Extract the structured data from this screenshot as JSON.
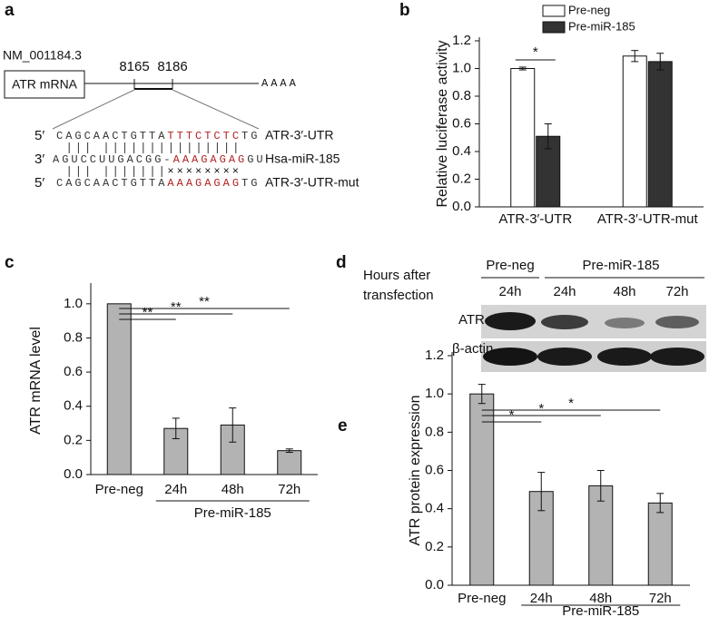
{
  "panel_a": {
    "letter": "a",
    "accession": "NM_001184.3",
    "gene_box": "ATR mRNA",
    "positions": [
      "8165",
      "8186"
    ],
    "poly_a": "AAAA",
    "rows": [
      {
        "end": "5′",
        "seq": [
          "CAGCAACTGTTA",
          "TTTCTCTC",
          "TG"
        ],
        "name": "ATR-3′-UTR"
      },
      {
        "end": "3′",
        "seq": [
          "AGUCCUUGACGG-",
          "AAAGAGAG",
          "GU"
        ],
        "name": "Hsa-miR-185"
      },
      {
        "end": "5′",
        "seq": [
          "CAGCAACTGTTA",
          "AAAGAGAG",
          "TG"
        ],
        "name": "ATR-3′-UTR-mut"
      }
    ],
    "mismatch": "××××××××"
  },
  "panel_d": {
    "letter": "d",
    "row_label": [
      "Hours after",
      "transfection"
    ],
    "groups": [
      "Pre-neg",
      "Pre-miR-185"
    ],
    "lanes": [
      "24h",
      "24h",
      "48h",
      "72h"
    ],
    "bands": [
      "ATR",
      "β-actin"
    ]
  },
  "chart_data": [
    {
      "type": "bar",
      "panel": "b",
      "ylabel": "Relative luciferase activity",
      "categories": [
        "ATR-3′-UTR",
        "ATR-3′-UTR-mut"
      ],
      "series": [
        {
          "name": "Pre-neg",
          "color": "#ffffff",
          "values": [
            1.0,
            1.09
          ],
          "errors": [
            0.01,
            0.04
          ]
        },
        {
          "name": "Pre-miR-185",
          "color": "#333333",
          "values": [
            0.51,
            1.05
          ],
          "errors": [
            0.09,
            0.06
          ]
        }
      ],
      "ylim": [
        0,
        1.2
      ],
      "yticks": [
        {
          "value": 0,
          "label": "0.0"
        },
        0.2,
        0.4,
        0.6,
        0.8,
        {
          "value": 1,
          "label": "1.0"
        },
        1.2
      ],
      "annotations": [
        "*"
      ],
      "legend": "top-right"
    },
    {
      "type": "bar",
      "panel": "c",
      "ylabel": "ATR mRNA level",
      "categories": [
        "Pre-neg",
        "24h",
        "48h",
        "72h"
      ],
      "group_label": "Pre-miR-185",
      "values": [
        1.0,
        0.27,
        0.29,
        0.14
      ],
      "errors": [
        null,
        0.06,
        0.1,
        0.01
      ],
      "color": "#b3b3b3",
      "ylim": [
        0,
        1.1
      ],
      "yticks": [
        {
          "value": 0,
          "label": "0.0"
        },
        0.2,
        0.4,
        0.6,
        0.8,
        {
          "value": 1,
          "label": "1.0"
        }
      ],
      "annotations": [
        "**",
        "**",
        "**"
      ]
    },
    {
      "type": "bar",
      "panel": "e",
      "ylabel": "ATR protein expression",
      "categories": [
        "Pre-neg",
        "24h",
        "48h",
        "72h"
      ],
      "group_label": "Pre-miR-185",
      "values": [
        1.0,
        0.49,
        0.52,
        0.43
      ],
      "errors": [
        0.05,
        0.1,
        0.08,
        0.05
      ],
      "color": "#b3b3b3",
      "ylim": [
        0,
        1.2
      ],
      "yticks": [
        {
          "value": 0,
          "label": "0.0"
        },
        0.2,
        0.4,
        0.6,
        0.8,
        {
          "value": 1,
          "label": "1.0"
        },
        1.2
      ],
      "annotations": [
        "*",
        "*",
        "*"
      ]
    }
  ]
}
